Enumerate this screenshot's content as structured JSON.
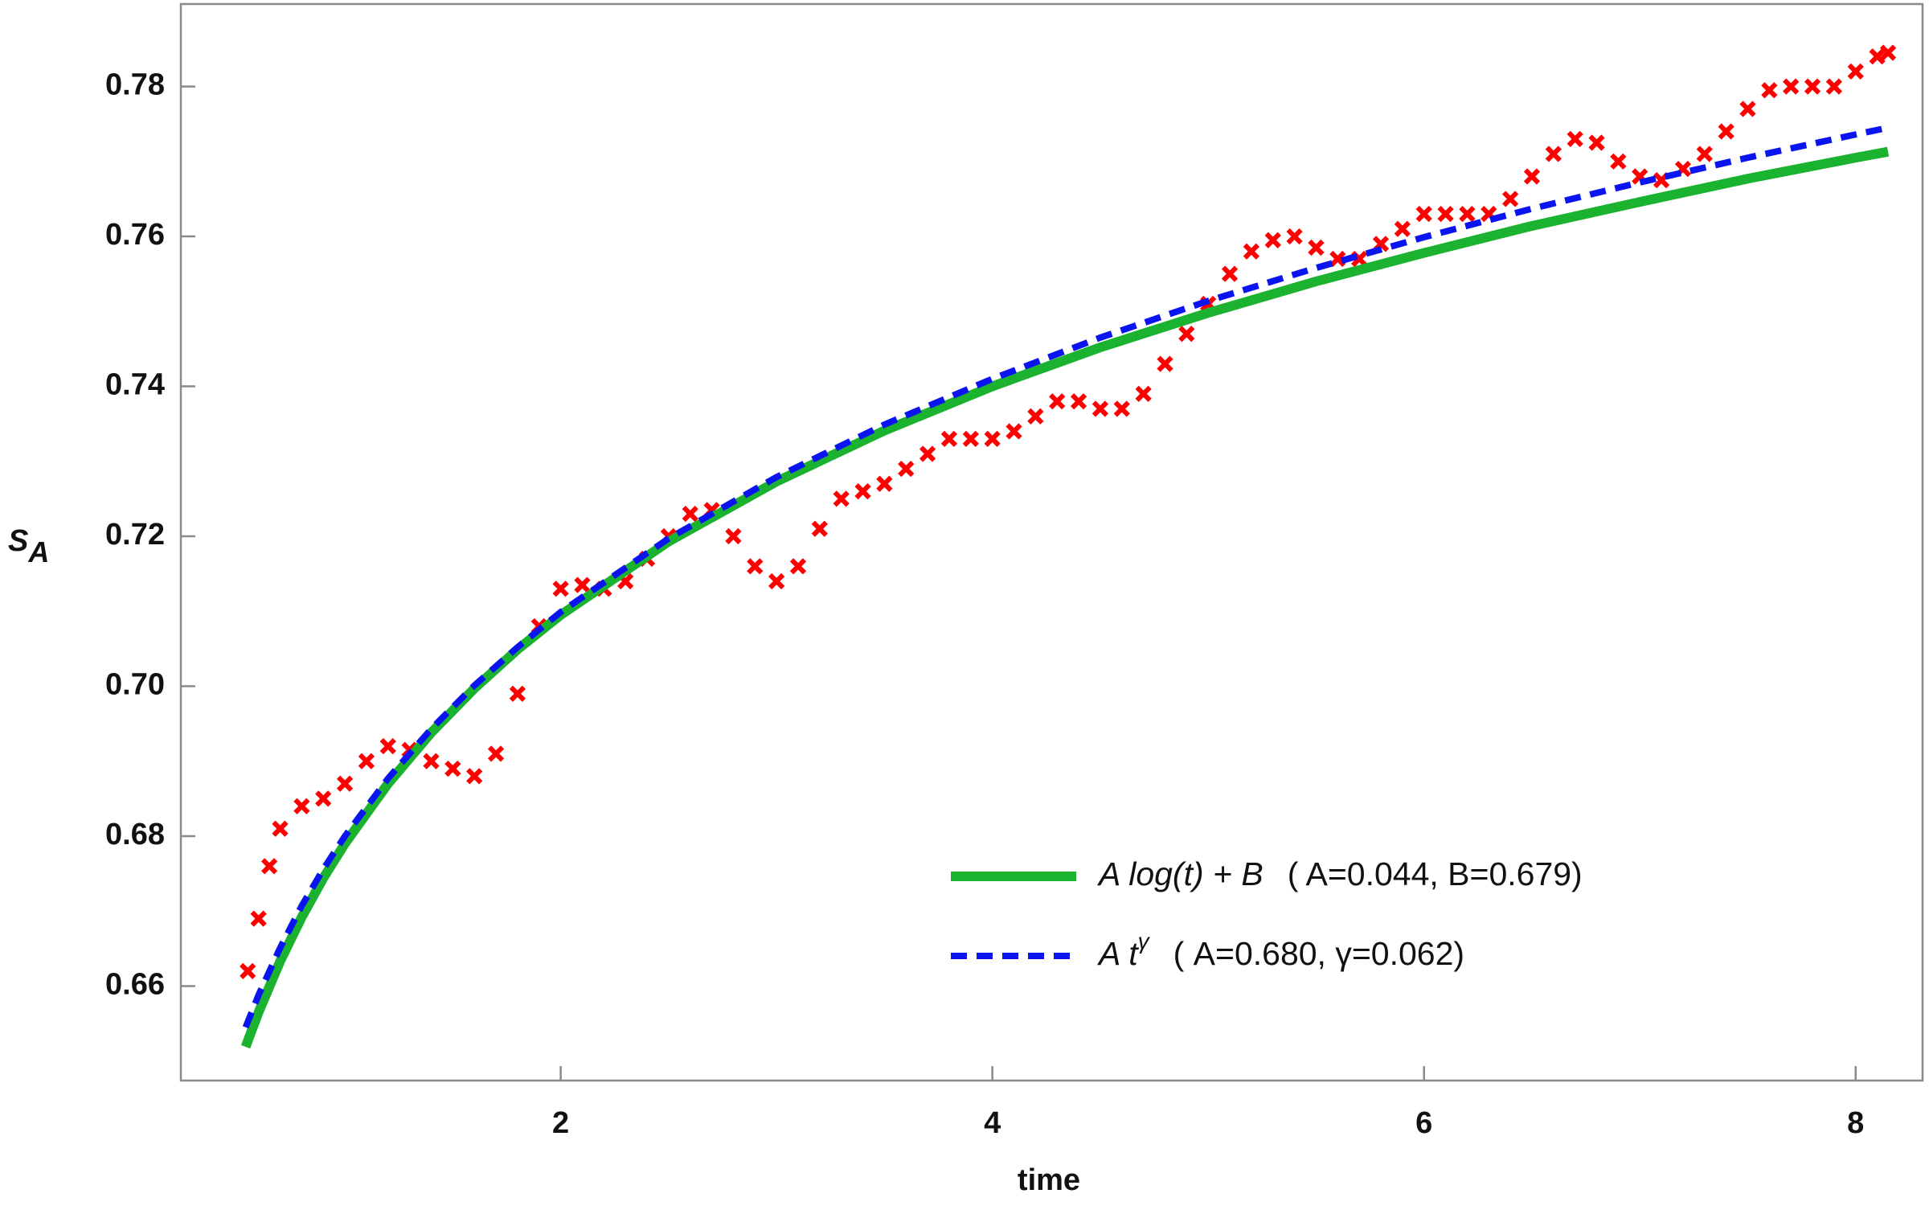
{
  "chart_data": {
    "type": "line",
    "xlabel": "time",
    "ylabel": "S",
    "ylabel_sub": "A",
    "xlim": [
      0.24,
      8.31
    ],
    "ylim": [
      0.6474,
      0.791
    ],
    "xticks": [
      2,
      4,
      6,
      8
    ],
    "yticks": [
      0.66,
      0.68,
      {
        "value": 0.7,
        "label": "0.70"
      },
      0.72,
      0.74,
      0.76,
      0.78
    ],
    "series": [
      {
        "style": "markers",
        "color": "#ff0000",
        "x": [
          0.55,
          0.6,
          0.65,
          0.7,
          0.8,
          0.9,
          1.0,
          1.1,
          1.2,
          1.3,
          1.4,
          1.5,
          1.6,
          1.7,
          1.8,
          1.9,
          2.0,
          2.1,
          2.2,
          2.3,
          2.4,
          2.5,
          2.6,
          2.7,
          2.8,
          2.9,
          3.0,
          3.1,
          3.2,
          3.3,
          3.4,
          3.5,
          3.6,
          3.7,
          3.8,
          3.9,
          4.0,
          4.1,
          4.2,
          4.3,
          4.4,
          4.5,
          4.6,
          4.7,
          4.8,
          4.9,
          5.0,
          5.1,
          5.2,
          5.3,
          5.4,
          5.5,
          5.6,
          5.7,
          5.8,
          5.9,
          6.0,
          6.1,
          6.2,
          6.3,
          6.4,
          6.5,
          6.6,
          6.7,
          6.8,
          6.9,
          7.0,
          7.1,
          7.2,
          7.3,
          7.4,
          7.5,
          7.6,
          7.7,
          7.8,
          7.9,
          8.0,
          8.1,
          8.15
        ],
        "values": [
          0.662,
          0.669,
          0.676,
          0.681,
          0.684,
          0.685,
          0.687,
          0.69,
          0.692,
          0.6915,
          0.69,
          0.689,
          0.688,
          0.691,
          0.699,
          0.708,
          0.713,
          0.7135,
          0.713,
          0.714,
          0.717,
          0.72,
          0.723,
          0.7235,
          0.72,
          0.716,
          0.714,
          0.716,
          0.721,
          0.725,
          0.726,
          0.727,
          0.729,
          0.731,
          0.733,
          0.733,
          0.733,
          0.734,
          0.736,
          0.738,
          0.738,
          0.737,
          0.737,
          0.739,
          0.743,
          0.747,
          0.751,
          0.755,
          0.758,
          0.7595,
          0.76,
          0.7585,
          0.757,
          0.757,
          0.759,
          0.761,
          0.763,
          0.763,
          0.763,
          0.763,
          0.765,
          0.768,
          0.771,
          0.773,
          0.7725,
          0.77,
          0.768,
          0.7675,
          0.769,
          0.771,
          0.774,
          0.777,
          0.7795,
          0.78,
          0.78,
          0.78,
          0.782,
          0.784,
          0.7845
        ]
      },
      {
        "style": "solid",
        "color": "#1ab22e",
        "name": "A log(t) + B",
        "fit_params": "( A=0.044, B=0.679)",
        "x": [
          0.54,
          0.6,
          0.7,
          0.8,
          0.9,
          1,
          1.2,
          1.4,
          1.6,
          1.8,
          2,
          2.5,
          3,
          3.5,
          4,
          4.5,
          5,
          5.5,
          6,
          6.5,
          7,
          7.5,
          8,
          8.15
        ],
        "values": [
          0.6519,
          0.6565,
          0.6633,
          0.6692,
          0.6744,
          0.679,
          0.687,
          0.6938,
          0.6997,
          0.7049,
          0.7095,
          0.7193,
          0.7273,
          0.7341,
          0.74,
          0.7452,
          0.7498,
          0.754,
          0.7578,
          0.7614,
          0.7646,
          0.7677,
          0.7705,
          0.7713
        ]
      },
      {
        "style": "dashed",
        "color": "#0a14f0",
        "name": "A t",
        "exponent": "γ",
        "fit_params": "( A=0.680,  γ=0.062)",
        "x": [
          0.54,
          0.6,
          0.7,
          0.8,
          0.9,
          1,
          1.2,
          1.4,
          1.6,
          1.8,
          2,
          2.5,
          3,
          3.5,
          4,
          4.5,
          5,
          5.5,
          6,
          6.5,
          7,
          7.5,
          8,
          8.15
        ],
        "values": [
          0.6545,
          0.6588,
          0.6651,
          0.6707,
          0.6756,
          0.68,
          0.6877,
          0.6943,
          0.7001,
          0.7052,
          0.7099,
          0.7197,
          0.7279,
          0.7349,
          0.741,
          0.7465,
          0.7514,
          0.7558,
          0.7599,
          0.7637,
          0.7672,
          0.7705,
          0.7736,
          0.7745
        ]
      }
    ]
  }
}
